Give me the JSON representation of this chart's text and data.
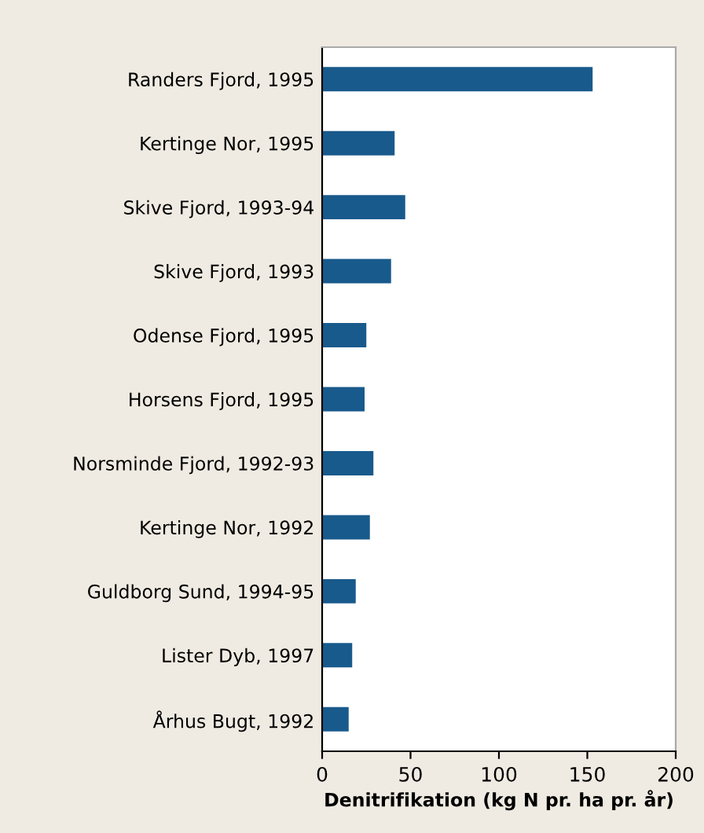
{
  "chart_data": {
    "type": "bar",
    "orientation": "horizontal",
    "xlabel": "Denitrifikation (kg N pr. ha pr. år)",
    "categories": [
      "Randers Fjord, 1995",
      "Kertinge Nor, 1995",
      "Skive Fjord, 1993-94",
      "Skive Fjord, 1993",
      "Odense Fjord, 1995",
      "Horsens Fjord, 1995",
      "Norsminde Fjord, 1992-93",
      "Kertinge Nor, 1992",
      "Guldborg Sund, 1994-95",
      "Lister Dyb, 1997",
      "Århus Bugt, 1992"
    ],
    "values": [
      153,
      41,
      47,
      39,
      25,
      24,
      29,
      27,
      19,
      17,
      15
    ],
    "color": "#185a8c",
    "xlim": [
      0,
      200
    ],
    "xticks": [
      0,
      50,
      100,
      150,
      200
    ],
    "grid": false,
    "legend": false
  }
}
